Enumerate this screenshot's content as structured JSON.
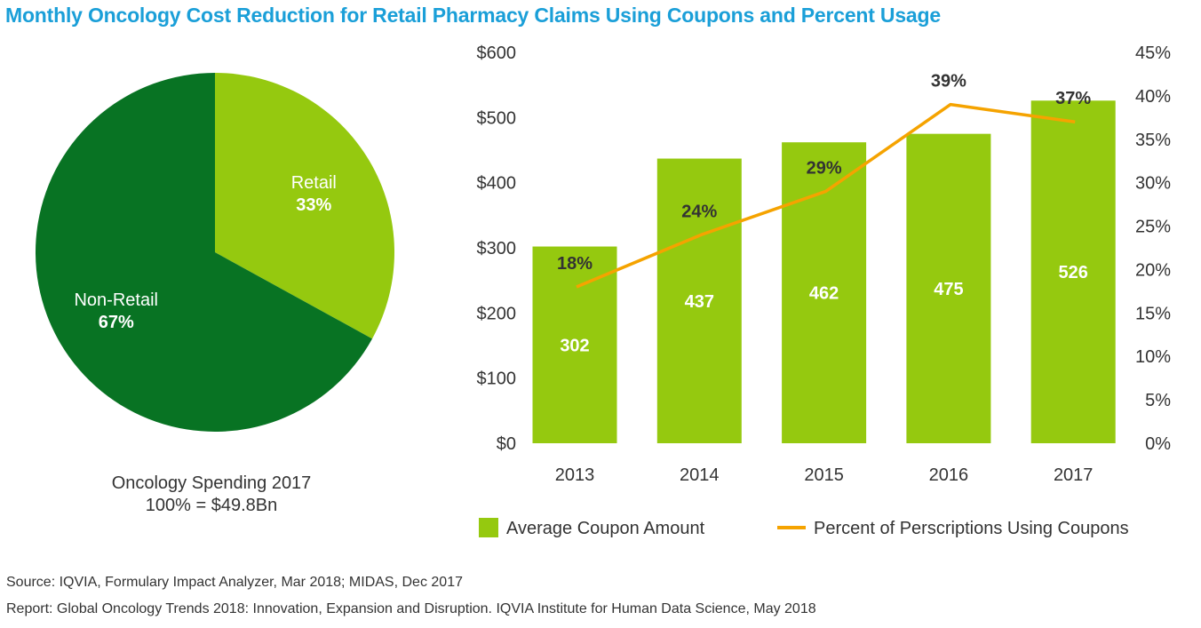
{
  "title": "Monthly Oncology Cost Reduction for Retail Pharmacy Claims Using Coupons and Percent Usage",
  "pie_caption_line1": "Oncology Spending 2017",
  "pie_caption_line2": "100% = $49.8Bn",
  "source": "Source: IQVIA, Formulary Impact Analyzer, Mar 2018; MIDAS, Dec 2017",
  "report": "Report: Global Oncology Trends 2018: Innovation, Expansion and Disruption. IQVIA Institute for Human Data Science, May 2018",
  "colors": {
    "title": "#1a9fd8",
    "bar": "#95c90f",
    "line": "#f5a300",
    "retail": "#95c90f",
    "non_retail": "#087323",
    "text": "#333333"
  },
  "chart_data": [
    {
      "type": "pie",
      "slices": [
        {
          "label": "Retail",
          "value": 33,
          "value_label": "33%",
          "color": "#95c90f"
        },
        {
          "label": "Non-Retail",
          "value": 67,
          "value_label": "67%",
          "color": "#087323"
        }
      ]
    },
    {
      "type": "bar",
      "categories": [
        "2013",
        "2014",
        "2015",
        "2016",
        "2017"
      ],
      "series": [
        {
          "name": "Average Coupon Amount",
          "kind": "bar",
          "axis": "left",
          "values": [
            302,
            437,
            462,
            475,
            526
          ],
          "labels": [
            "302",
            "437",
            "462",
            "475",
            "526"
          ],
          "color": "#95c90f"
        },
        {
          "name": "Percent of Perscriptions Using Coupons",
          "kind": "line",
          "axis": "right",
          "values": [
            18,
            24,
            29,
            39,
            37
          ],
          "labels": [
            "18%",
            "24%",
            "29%",
            "39%",
            "37%"
          ],
          "color": "#f5a300"
        }
      ],
      "y_left": {
        "min": 0,
        "max": 600,
        "ticks": [
          "$0",
          "$100",
          "$200",
          "$300",
          "$400",
          "$500",
          "$600"
        ]
      },
      "y_right": {
        "min": 0,
        "max": 45,
        "ticks": [
          "0%",
          "5%",
          "10%",
          "15%",
          "20%",
          "25%",
          "30%",
          "35%",
          "40%",
          "45%"
        ]
      },
      "grid": false,
      "legend": "bottom"
    }
  ]
}
